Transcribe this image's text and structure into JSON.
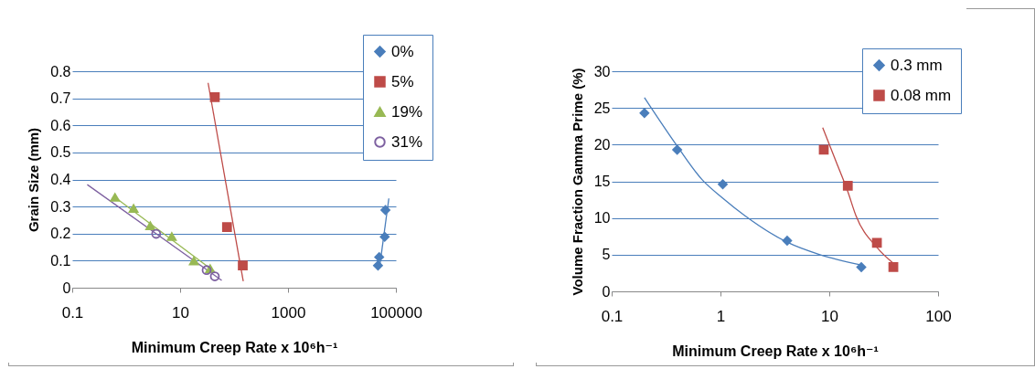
{
  "chart_data": [
    {
      "type": "scatter",
      "xlabel": "Minimum  Creep Rate x 10⁶h⁻¹",
      "ylabel": "Grain Size (mm)",
      "log": "x",
      "xlim": [
        0.1,
        100000
      ],
      "xticks": [
        0.1,
        10,
        1000,
        100000
      ],
      "ylim": [
        0,
        0.8
      ],
      "yticks": [
        0,
        0.1,
        0.2,
        0.3,
        0.4,
        0.5,
        0.6,
        0.7,
        0.8
      ],
      "grid": "y",
      "legend": "top right",
      "series": [
        {
          "name": "0%",
          "color": "#4a7ebb",
          "marker": "diamond",
          "x": [
            46600,
            49000,
            62000,
            64000
          ],
          "values": [
            0.082,
            0.113,
            0.188,
            0.287
          ]
        },
        {
          "name": "5%",
          "color": "#be4b48",
          "marker": "square",
          "x": [
            44,
            74,
            145
          ],
          "values": [
            0.704,
            0.224,
            0.082
          ]
        },
        {
          "name": "19%",
          "color": "#98b954",
          "marker": "triangle",
          "x": [
            0.62,
            1.37,
            2.8,
            7.0,
            18,
            36
          ],
          "values": [
            0.334,
            0.293,
            0.229,
            0.189,
            0.099,
            0.07
          ]
        },
        {
          "name": "31%",
          "color": "#7d60a0",
          "marker": "circle",
          "x": [
            3.6,
            31,
            44
          ],
          "values": [
            0.199,
            0.065,
            0.042
          ]
        },
        {
          "type": "line",
          "color": "#4a7ebb",
          "x": [
            50000,
            74000
          ],
          "values": [
            0.078,
            0.33
          ]
        },
        {
          "type": "line",
          "color": "#be4b48",
          "x": [
            33,
            148
          ],
          "values": [
            0.757,
            0.024
          ]
        },
        {
          "type": "line",
          "color": "#98b954",
          "x": [
            0.62,
            43
          ],
          "values": [
            0.334,
            0.06
          ]
        },
        {
          "type": "line",
          "color": "#7d60a0",
          "x": [
            0.19,
            59
          ],
          "values": [
            0.381,
            0.027
          ]
        }
      ]
    },
    {
      "type": "scatter",
      "xlabel": "Minimum  Creep Rate x 10⁶h⁻¹",
      "ylabel": "Volume Fraction Gamma Prime (%)",
      "log": "x",
      "xlim": [
        0.1,
        100
      ],
      "xticks": [
        0.1,
        1,
        10,
        100
      ],
      "ylim": [
        0,
        30
      ],
      "yticks": [
        0,
        5,
        10,
        15,
        20,
        25,
        30
      ],
      "grid": "y",
      "legend": "top right",
      "series": [
        {
          "name": "0.3 mm",
          "color": "#4a7ebb",
          "marker": "diamond",
          "x": [
            0.2,
            0.4,
            1.05,
            4.1,
            19.7
          ],
          "values": [
            24.3,
            19.3,
            14.6,
            6.9,
            3.3
          ]
        },
        {
          "name": "0.08 mm",
          "color": "#be4b48",
          "marker": "square",
          "x": [
            8.9,
            14.8,
            27.4,
            38.8
          ],
          "values": [
            19.3,
            14.4,
            6.6,
            3.3
          ]
        },
        {
          "type": "line",
          "color": "#4a7ebb",
          "x": [
            0.2,
            0.4,
            0.68,
            1.05,
            1.68,
            4.1,
            8.2,
            19.7
          ],
          "values": [
            26.4,
            19.8,
            15.2,
            12.7,
            10.3,
            6.7,
            5.0,
            3.6
          ]
        },
        {
          "type": "line",
          "color": "#be4b48",
          "x": [
            8.7,
            11.6,
            14.8,
            17.6,
            27.4,
            39
          ],
          "values": [
            22.3,
            17.6,
            13.6,
            10.3,
            6.0,
            3.8
          ]
        }
      ]
    }
  ]
}
